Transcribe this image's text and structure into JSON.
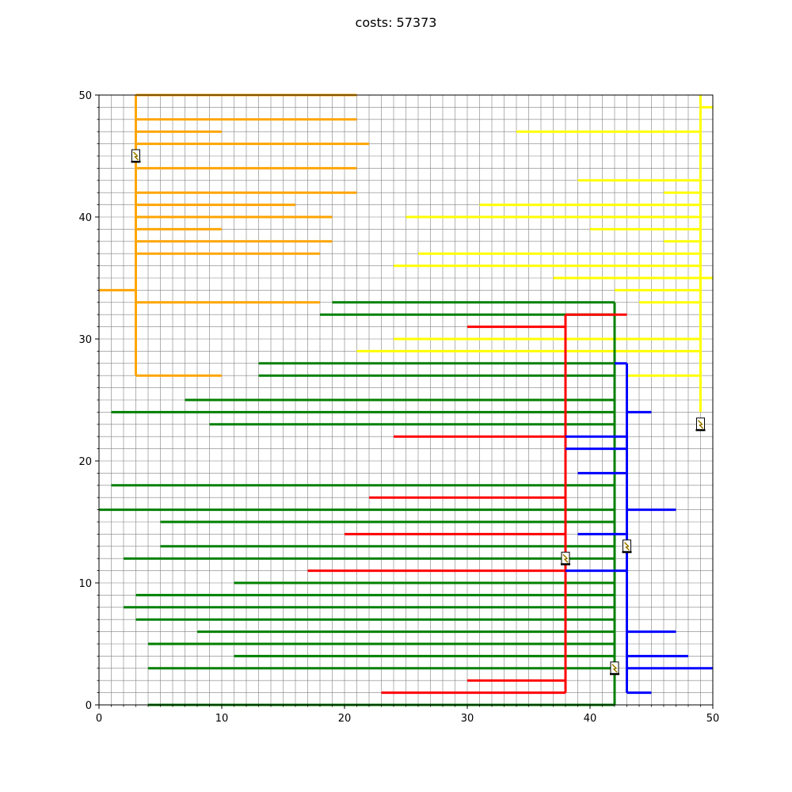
{
  "chart_data": {
    "type": "line",
    "title": "costs: 57373",
    "xlabel": "",
    "ylabel": "",
    "xlim": [
      0,
      50
    ],
    "ylim": [
      0,
      50
    ],
    "x_ticks": [
      0,
      10,
      20,
      30,
      40,
      50
    ],
    "y_ticks": [
      0,
      10,
      20,
      30,
      40,
      50
    ],
    "grid": true,
    "grid_color": "#808080",
    "legend": "none",
    "source_icon": "power-plug-icon",
    "colors": {
      "orange": "#ffa500",
      "yellow": "#ffff00",
      "green": "#008000",
      "red": "#ff0000",
      "blue": "#0000ff"
    },
    "series": [
      {
        "color": "#ffa500",
        "source": [
          3,
          45
        ],
        "segments": [
          [
            3,
            27,
            3,
            50
          ],
          [
            3,
            50,
            21,
            50
          ],
          [
            3,
            48,
            21,
            48
          ],
          [
            3,
            47,
            10,
            47
          ],
          [
            3,
            46,
            22,
            46
          ],
          [
            3,
            44,
            21,
            44
          ],
          [
            3,
            42,
            21,
            42
          ],
          [
            3,
            41,
            16,
            41
          ],
          [
            3,
            40,
            19,
            40
          ],
          [
            3,
            39,
            10,
            39
          ],
          [
            3,
            38,
            19,
            38
          ],
          [
            3,
            37,
            18,
            37
          ],
          [
            0,
            34,
            3,
            34
          ],
          [
            3,
            33,
            18,
            33
          ],
          [
            3,
            27,
            10,
            27
          ]
        ]
      },
      {
        "color": "#ffff00",
        "source": [
          49,
          23
        ],
        "segments": [
          [
            49,
            24,
            49,
            50
          ],
          [
            49,
            49,
            50,
            49
          ],
          [
            34,
            47,
            49,
            47
          ],
          [
            39,
            43,
            49,
            43
          ],
          [
            46,
            42,
            49,
            42
          ],
          [
            31,
            41,
            49,
            41
          ],
          [
            25,
            40,
            49,
            40
          ],
          [
            40,
            39,
            49,
            39
          ],
          [
            46,
            38,
            49,
            38
          ],
          [
            26,
            37,
            49,
            37
          ],
          [
            24,
            36,
            49,
            36
          ],
          [
            37,
            35,
            50,
            35
          ],
          [
            42,
            34,
            49,
            34
          ],
          [
            44,
            33,
            49,
            33
          ],
          [
            24,
            30,
            49,
            30
          ],
          [
            21,
            29,
            49,
            29
          ],
          [
            43,
            27,
            49,
            27
          ]
        ]
      },
      {
        "color": "#008000",
        "source": [
          42,
          3
        ],
        "segments": [
          [
            42,
            0,
            42,
            33
          ],
          [
            19,
            33,
            42,
            33
          ],
          [
            18,
            32,
            42,
            32
          ],
          [
            13,
            28,
            42,
            28
          ],
          [
            13,
            27,
            42,
            27
          ],
          [
            7,
            25,
            42,
            25
          ],
          [
            1,
            24,
            42,
            24
          ],
          [
            9,
            23,
            42,
            23
          ],
          [
            1,
            18,
            42,
            18
          ],
          [
            0,
            16,
            42,
            16
          ],
          [
            5,
            15,
            42,
            15
          ],
          [
            5,
            13,
            42,
            13
          ],
          [
            2,
            12,
            42,
            12
          ],
          [
            11,
            10,
            42,
            10
          ],
          [
            3,
            9,
            42,
            9
          ],
          [
            2,
            8,
            42,
            8
          ],
          [
            3,
            7,
            42,
            7
          ],
          [
            8,
            6,
            42,
            6
          ],
          [
            4,
            5,
            42,
            5
          ],
          [
            11,
            4,
            42,
            4
          ],
          [
            4,
            3,
            42,
            3
          ],
          [
            4,
            0,
            42,
            0
          ]
        ]
      },
      {
        "color": "#ff0000",
        "source": [
          38,
          12
        ],
        "segments": [
          [
            38,
            1,
            38,
            32
          ],
          [
            38,
            32,
            43,
            32
          ],
          [
            30,
            31,
            38,
            31
          ],
          [
            24,
            22,
            38,
            22
          ],
          [
            22,
            17,
            38,
            17
          ],
          [
            20,
            14,
            38,
            14
          ],
          [
            17,
            11,
            38,
            11
          ],
          [
            30,
            2,
            38,
            2
          ],
          [
            23,
            1,
            38,
            1
          ]
        ]
      },
      {
        "color": "#0000ff",
        "source": [
          43,
          13
        ],
        "segments": [
          [
            43,
            1,
            43,
            28
          ],
          [
            42,
            28,
            43,
            28
          ],
          [
            43,
            24,
            45,
            24
          ],
          [
            38,
            22,
            43,
            22
          ],
          [
            38,
            21,
            43,
            21
          ],
          [
            39,
            19,
            43,
            19
          ],
          [
            43,
            16,
            47,
            16
          ],
          [
            39,
            14,
            43,
            14
          ],
          [
            38,
            11,
            43,
            11
          ],
          [
            43,
            6,
            47,
            6
          ],
          [
            43,
            4,
            48,
            4
          ],
          [
            43,
            3,
            50,
            3
          ],
          [
            43,
            1,
            45,
            1
          ]
        ]
      }
    ]
  }
}
